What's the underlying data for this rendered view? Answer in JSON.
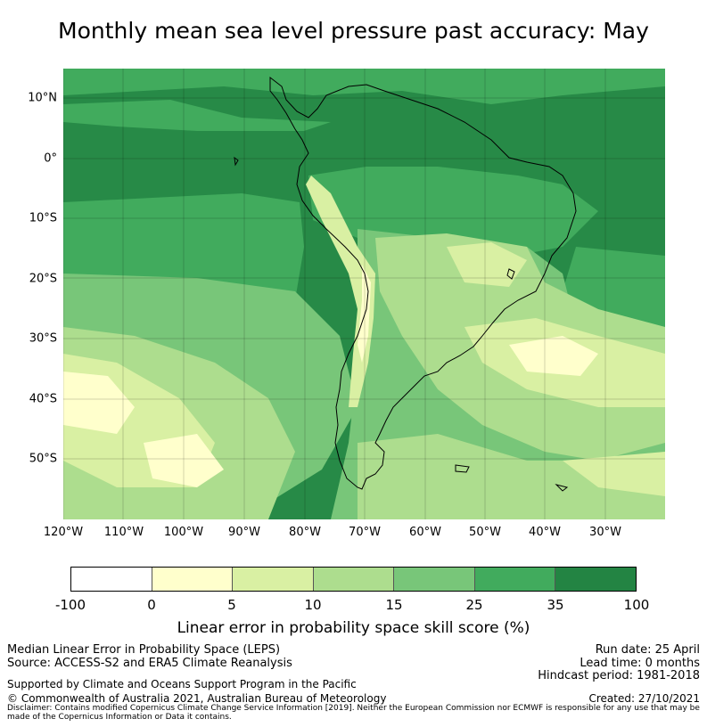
{
  "title": "Monthly mean sea level pressure past accuracy: May",
  "map": {
    "lat_labels": [
      "10°N",
      "0°",
      "10°S",
      "20°S",
      "30°S",
      "40°S",
      "50°S"
    ],
    "lon_labels": [
      "120°W",
      "110°W",
      "100°W",
      "90°W",
      "80°W",
      "70°W",
      "60°W",
      "50°W",
      "40°W",
      "30°W"
    ]
  },
  "colorbar": {
    "label": "Linear error in probability space skill score (%)",
    "ticks": [
      "-100",
      "0",
      "5",
      "10",
      "15",
      "25",
      "35",
      "100"
    ],
    "colors": [
      "#ffffff",
      "#ffffcc",
      "#d9f0a3",
      "#addd8e",
      "#78c679",
      "#41ab5d",
      "#238443"
    ]
  },
  "footer": {
    "left_line1": "Median Linear Error in Probability Space (LEPS)",
    "left_line2": "Source: ACCESS-S2 and ERA5 Climate Reanalysis",
    "support": "Supported by Climate and Oceans Support Program in the Pacific",
    "copyright": "© Commonwealth of Australia 2021, Australian Bureau of Meteorology",
    "disclaimer": "Disclaimer: Contains modified Copernicus Climate Change Service Information [2019]. Neither the European Commission nor ECMWF is responsible for any use that may be made of the Copernicus Information or Data it contains.",
    "run_date": "Run date: 25 April",
    "lead_time": "Lead time: 0 months",
    "hindcast": "Hindcast period: 1981-2018",
    "created": "Created: 27/10/2021"
  }
}
